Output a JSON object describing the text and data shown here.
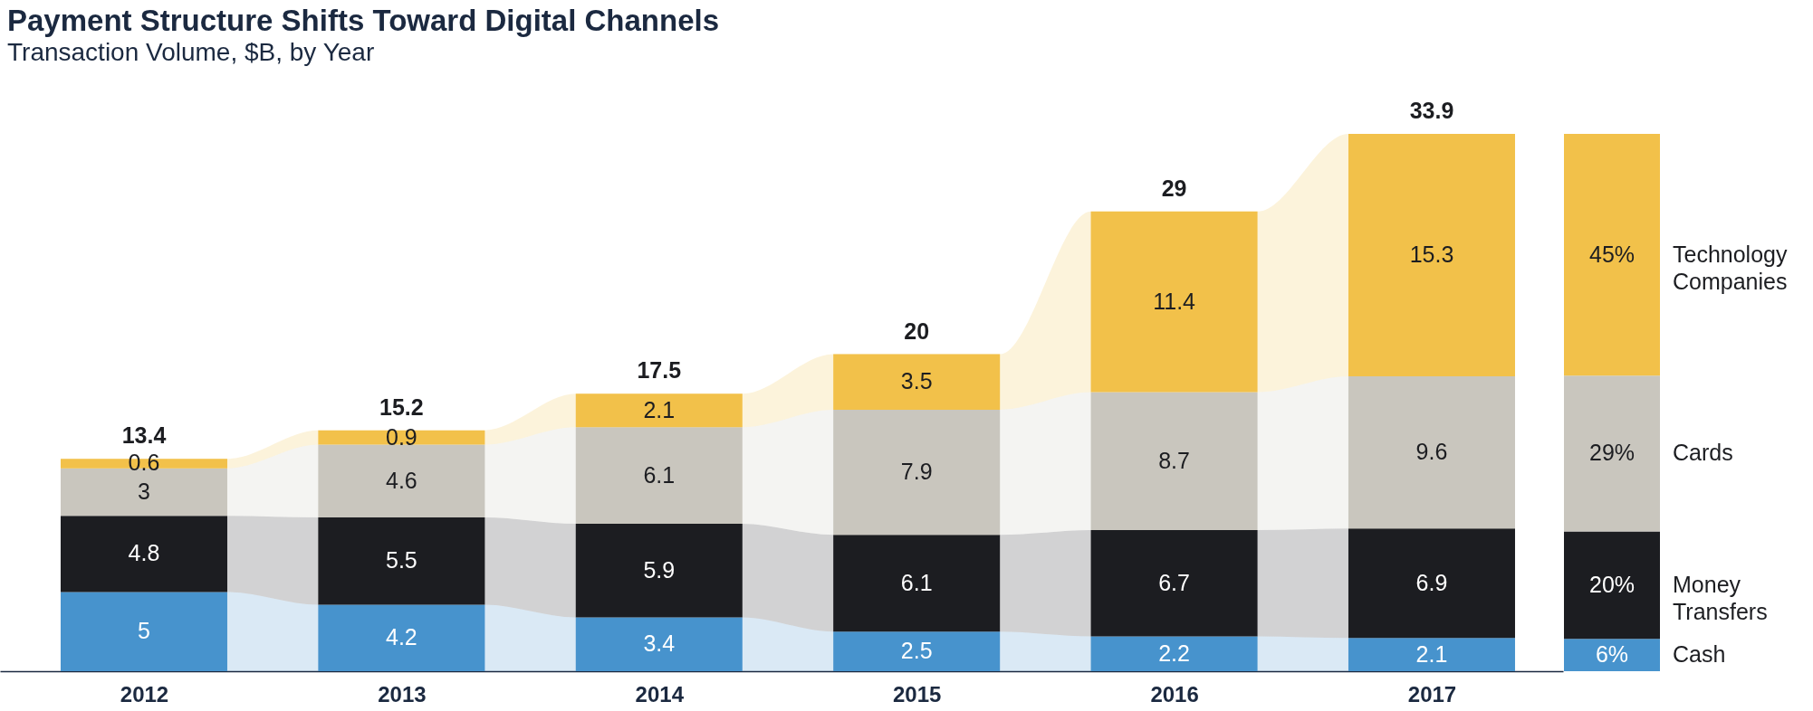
{
  "chart_data": [
    {
      "type": "bar",
      "title": "Payment Structure Shifts Toward Digital Channels",
      "subtitle": "Transaction Volume, $B, by Year",
      "categories": [
        "2012",
        "2013",
        "2014",
        "2015",
        "2016",
        "2017"
      ],
      "stacked": true,
      "data_labels": true,
      "totals": [
        "13.4",
        "15.2",
        "17.5",
        "20",
        "29",
        "33.9"
      ],
      "series": [
        {
          "color": "#4793cd",
          "values": [
            5,
            4.2,
            3.4,
            2.5,
            2.2,
            2.1
          ]
        },
        {
          "color": "#1c1d21",
          "values": [
            4.8,
            5.5,
            5.9,
            6.1,
            6.7,
            6.9
          ]
        },
        {
          "color": "#c9c6be",
          "values": [
            3,
            4.6,
            6.1,
            7.9,
            8.7,
            9.6
          ]
        },
        {
          "color": "#f2c14a",
          "values": [
            0.6,
            0.9,
            2.1,
            3.5,
            11.4,
            15.3
          ]
        }
      ]
    },
    {
      "type": "bar",
      "categories": [
        null
      ],
      "stacked": true,
      "series": [
        {
          "name": "Cash",
          "color": "#4793cd",
          "values": [
            6
          ],
          "value_labels": [
            "6%"
          ]
        },
        {
          "name": "Money Transfers",
          "color": "#1c1d21",
          "values": [
            20
          ],
          "value_labels": [
            "20%"
          ]
        },
        {
          "name": "Cards",
          "color": "#c9c6be",
          "values": [
            29
          ],
          "value_labels": [
            "29%"
          ]
        },
        {
          "name": "Technology Companies",
          "color": "#f2c14a",
          "values": [
            45
          ],
          "value_labels": [
            "45%"
          ]
        }
      ]
    }
  ]
}
